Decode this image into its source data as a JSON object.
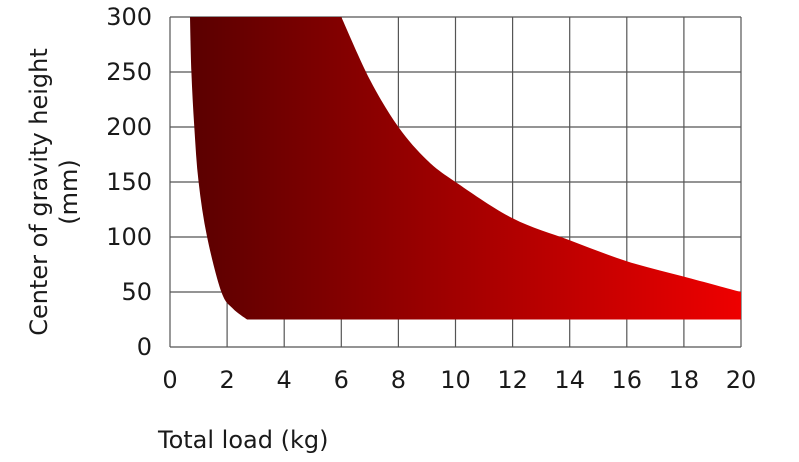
{
  "chart_data": {
    "type": "area",
    "title": "",
    "xlabel": "Total load (kg)",
    "ylabel_lines": [
      "Center of gravity height",
      "(mm)"
    ],
    "xlim": [
      0,
      20
    ],
    "ylim": [
      0,
      300
    ],
    "x_ticks": [
      "0",
      "2",
      "4",
      "6",
      "8",
      "10",
      "12",
      "14",
      "16",
      "18",
      "20"
    ],
    "y_ticks": [
      "0",
      "50",
      "100",
      "150",
      "200",
      "250",
      "300"
    ],
    "grid": true,
    "fill_gradient": [
      "#5a0000",
      "#ee0000"
    ],
    "upper_boundary": [
      {
        "x": 6.0,
        "y": 300
      },
      {
        "x": 7.0,
        "y": 243
      },
      {
        "x": 8.0,
        "y": 200
      },
      {
        "x": 9.0,
        "y": 170
      },
      {
        "x": 10.0,
        "y": 150
      },
      {
        "x": 12.0,
        "y": 117
      },
      {
        "x": 14.0,
        "y": 97
      },
      {
        "x": 16.0,
        "y": 78
      },
      {
        "x": 18.0,
        "y": 64
      },
      {
        "x": 20.0,
        "y": 50
      }
    ],
    "lower_boundary": [
      {
        "x": 20.0,
        "y": 25
      },
      {
        "x": 2.7,
        "y": 25
      },
      {
        "x": 2.2,
        "y": 35
      },
      {
        "x": 1.8,
        "y": 50
      },
      {
        "x": 1.3,
        "y": 100
      },
      {
        "x": 1.0,
        "y": 150
      },
      {
        "x": 0.85,
        "y": 200
      },
      {
        "x": 0.75,
        "y": 250
      },
      {
        "x": 0.7,
        "y": 300
      }
    ]
  }
}
